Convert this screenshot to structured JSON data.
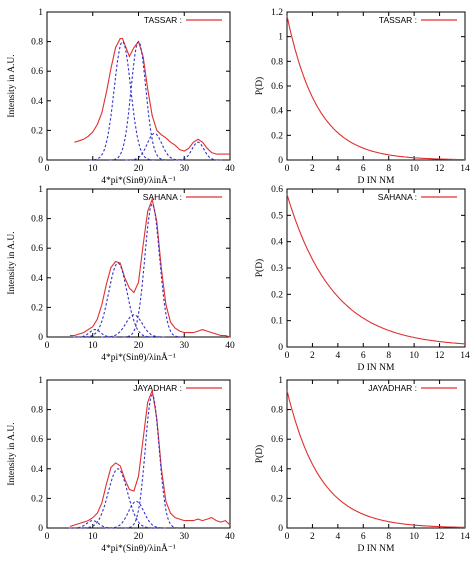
{
  "chart_data": [
    {
      "id": "tassar-xrd",
      "type": "line",
      "xlabel": "4*pi*(Sinθ)/λinÅ⁻¹",
      "ylabel": "Intensity in A.U.",
      "xlim": [
        0,
        40
      ],
      "ylim": [
        0,
        1
      ],
      "xticks": [
        "0",
        "10",
        "20",
        "30",
        "40"
      ],
      "yticks": [
        "0",
        "0.2",
        "0.4",
        "0.6",
        "0.8",
        "1"
      ],
      "legend": {
        "label": "TASSAR :",
        "position": "top-right",
        "color": "#e03030"
      },
      "series": [
        {
          "style": "solid-red",
          "x": [
            6,
            7,
            8,
            9,
            10,
            11,
            12,
            13,
            14,
            15,
            16,
            16.5,
            17,
            18,
            19,
            20,
            21,
            22,
            23,
            24,
            25,
            26,
            27,
            28,
            29,
            30,
            31,
            32,
            33,
            34,
            35,
            36,
            37,
            38,
            39,
            40
          ],
          "y": [
            0.12,
            0.13,
            0.14,
            0.16,
            0.19,
            0.24,
            0.32,
            0.46,
            0.62,
            0.76,
            0.82,
            0.82,
            0.78,
            0.7,
            0.76,
            0.8,
            0.7,
            0.48,
            0.3,
            0.2,
            0.17,
            0.15,
            0.12,
            0.1,
            0.07,
            0.06,
            0.08,
            0.12,
            0.14,
            0.12,
            0.08,
            0.05,
            0.04,
            0.04,
            0.04,
            0.04
          ]
        },
        {
          "style": "dashed-blue",
          "gaussian": {
            "a": 0.8,
            "mu": 16.5,
            "sigma": 1.8
          }
        },
        {
          "style": "dashed-blue",
          "gaussian": {
            "a": 0.8,
            "mu": 20.0,
            "sigma": 1.6
          }
        },
        {
          "style": "dashed-blue",
          "gaussian": {
            "a": 0.18,
            "mu": 23.5,
            "sigma": 1.6
          }
        },
        {
          "style": "dashed-blue",
          "gaussian": {
            "a": 0.12,
            "mu": 33.0,
            "sigma": 1.3
          }
        }
      ]
    },
    {
      "id": "tassar-pd",
      "type": "line",
      "xlabel": "D IN NM",
      "ylabel": "P(D)",
      "xlim": [
        0,
        14
      ],
      "ylim": [
        0,
        1.2
      ],
      "xticks": [
        "0",
        "2",
        "4",
        "6",
        "8",
        "10",
        "12",
        "14"
      ],
      "yticks": [
        "0",
        "0.2",
        "0.4",
        "0.6",
        "0.8",
        "1",
        "1.2"
      ],
      "legend": {
        "label": "TASSAR :",
        "position": "top-right",
        "color": "#e03030"
      },
      "series": [
        {
          "style": "solid-red",
          "exponential": {
            "p0": 1.17,
            "scale": 2.4
          }
        }
      ]
    },
    {
      "id": "sahana-xrd",
      "type": "line",
      "xlabel": "4*pi*(Sinθ)/λinÅ⁻¹",
      "ylabel": "Intensity in A.U.",
      "xlim": [
        0,
        40
      ],
      "ylim": [
        0,
        1
      ],
      "xticks": [
        "0",
        "10",
        "20",
        "30",
        "40"
      ],
      "yticks": [
        "0",
        "0.2",
        "0.4",
        "0.6",
        "0.8",
        "1"
      ],
      "legend": {
        "label": "SAHANA :",
        "position": "top-right",
        "color": "#e03030"
      },
      "series": [
        {
          "style": "solid-red",
          "x": [
            5,
            6,
            7,
            8,
            9,
            10,
            11,
            12,
            13,
            14,
            15,
            16,
            17,
            18,
            19,
            20,
            21,
            22,
            23,
            24,
            25,
            26,
            27,
            28,
            29,
            30,
            31,
            32,
            33,
            34,
            35,
            36,
            37,
            38,
            39,
            40
          ],
          "y": [
            0.01,
            0.01,
            0.02,
            0.03,
            0.05,
            0.07,
            0.12,
            0.22,
            0.36,
            0.47,
            0.51,
            0.5,
            0.4,
            0.33,
            0.3,
            0.37,
            0.62,
            0.85,
            0.93,
            0.78,
            0.46,
            0.22,
            0.1,
            0.06,
            0.04,
            0.03,
            0.03,
            0.03,
            0.04,
            0.05,
            0.04,
            0.03,
            0.02,
            0.01,
            0.01,
            0.0
          ]
        },
        {
          "style": "dashed-blue",
          "gaussian": {
            "a": 0.5,
            "mu": 15.5,
            "sigma": 2.0
          }
        },
        {
          "style": "dashed-blue",
          "gaussian": {
            "a": 0.9,
            "mu": 23.0,
            "sigma": 1.6
          }
        },
        {
          "style": "dashed-blue",
          "gaussian": {
            "a": 0.15,
            "mu": 19.0,
            "sigma": 1.8
          }
        },
        {
          "style": "dashed-blue",
          "gaussian": {
            "a": 0.05,
            "mu": 10.5,
            "sigma": 1.2
          }
        }
      ]
    },
    {
      "id": "sahana-pd",
      "type": "line",
      "xlabel": "D IN NM",
      "ylabel": "P(D)",
      "xlim": [
        0,
        14
      ],
      "ylim": [
        0,
        0.6
      ],
      "xticks": [
        "0",
        "2",
        "4",
        "6",
        "8",
        "10",
        "12",
        "14"
      ],
      "yticks": [
        "0",
        "0.1",
        "0.2",
        "0.3",
        "0.4",
        "0.5",
        "0.6"
      ],
      "legend": {
        "label": "SAHANA :",
        "position": "top-right",
        "color": "#e03030"
      },
      "series": [
        {
          "style": "solid-red",
          "exponential": {
            "p0": 0.58,
            "scale": 3.6
          }
        }
      ]
    },
    {
      "id": "jayadhar-xrd",
      "type": "line",
      "xlabel": "4*pi*(Sinθ)/λinÅ⁻¹",
      "ylabel": "Intensity in A.U.",
      "xlim": [
        0,
        40
      ],
      "ylim": [
        0,
        1
      ],
      "xticks": [
        "0",
        "10",
        "20",
        "30",
        "40"
      ],
      "yticks": [
        "0",
        "0.2",
        "0.4",
        "0.6",
        "0.8",
        "1"
      ],
      "legend": {
        "label": "JAYADHAR :",
        "position": "top-right",
        "color": "#e03030"
      },
      "series": [
        {
          "style": "solid-red",
          "x": [
            5,
            6,
            7,
            8,
            9,
            10,
            11,
            12,
            13,
            14,
            15,
            16,
            17,
            18,
            19,
            20,
            21,
            22,
            23,
            24,
            25,
            26,
            27,
            28,
            29,
            30,
            31,
            32,
            33,
            34,
            35,
            36,
            37,
            38,
            39,
            40
          ],
          "y": [
            0.01,
            0.02,
            0.03,
            0.04,
            0.05,
            0.07,
            0.1,
            0.17,
            0.3,
            0.41,
            0.44,
            0.42,
            0.33,
            0.26,
            0.25,
            0.35,
            0.6,
            0.85,
            0.93,
            0.74,
            0.4,
            0.18,
            0.1,
            0.07,
            0.06,
            0.05,
            0.05,
            0.05,
            0.06,
            0.05,
            0.06,
            0.07,
            0.05,
            0.04,
            0.05,
            0.02
          ]
        },
        {
          "style": "dashed-blue",
          "gaussian": {
            "a": 0.4,
            "mu": 15.5,
            "sigma": 2.1
          }
        },
        {
          "style": "dashed-blue",
          "gaussian": {
            "a": 0.9,
            "mu": 23.0,
            "sigma": 1.5
          }
        },
        {
          "style": "dashed-blue",
          "gaussian": {
            "a": 0.18,
            "mu": 19.5,
            "sigma": 1.7
          }
        },
        {
          "style": "dashed-blue",
          "gaussian": {
            "a": 0.05,
            "mu": 10.0,
            "sigma": 1.3
          }
        }
      ]
    },
    {
      "id": "jayadhar-pd",
      "type": "line",
      "xlabel": "D IN NM",
      "ylabel": "P(D)",
      "xlim": [
        0,
        14
      ],
      "ylim": [
        0,
        1
      ],
      "xticks": [
        "0",
        "2",
        "4",
        "6",
        "8",
        "10",
        "12",
        "14"
      ],
      "yticks": [
        "0",
        "0.2",
        "0.4",
        "0.6",
        "0.8",
        "1"
      ],
      "legend": {
        "label": "JAYADHAR :",
        "position": "top-right",
        "color": "#e03030"
      },
      "series": [
        {
          "style": "solid-red",
          "exponential": {
            "p0": 0.93,
            "scale": 2.6
          }
        }
      ]
    }
  ]
}
